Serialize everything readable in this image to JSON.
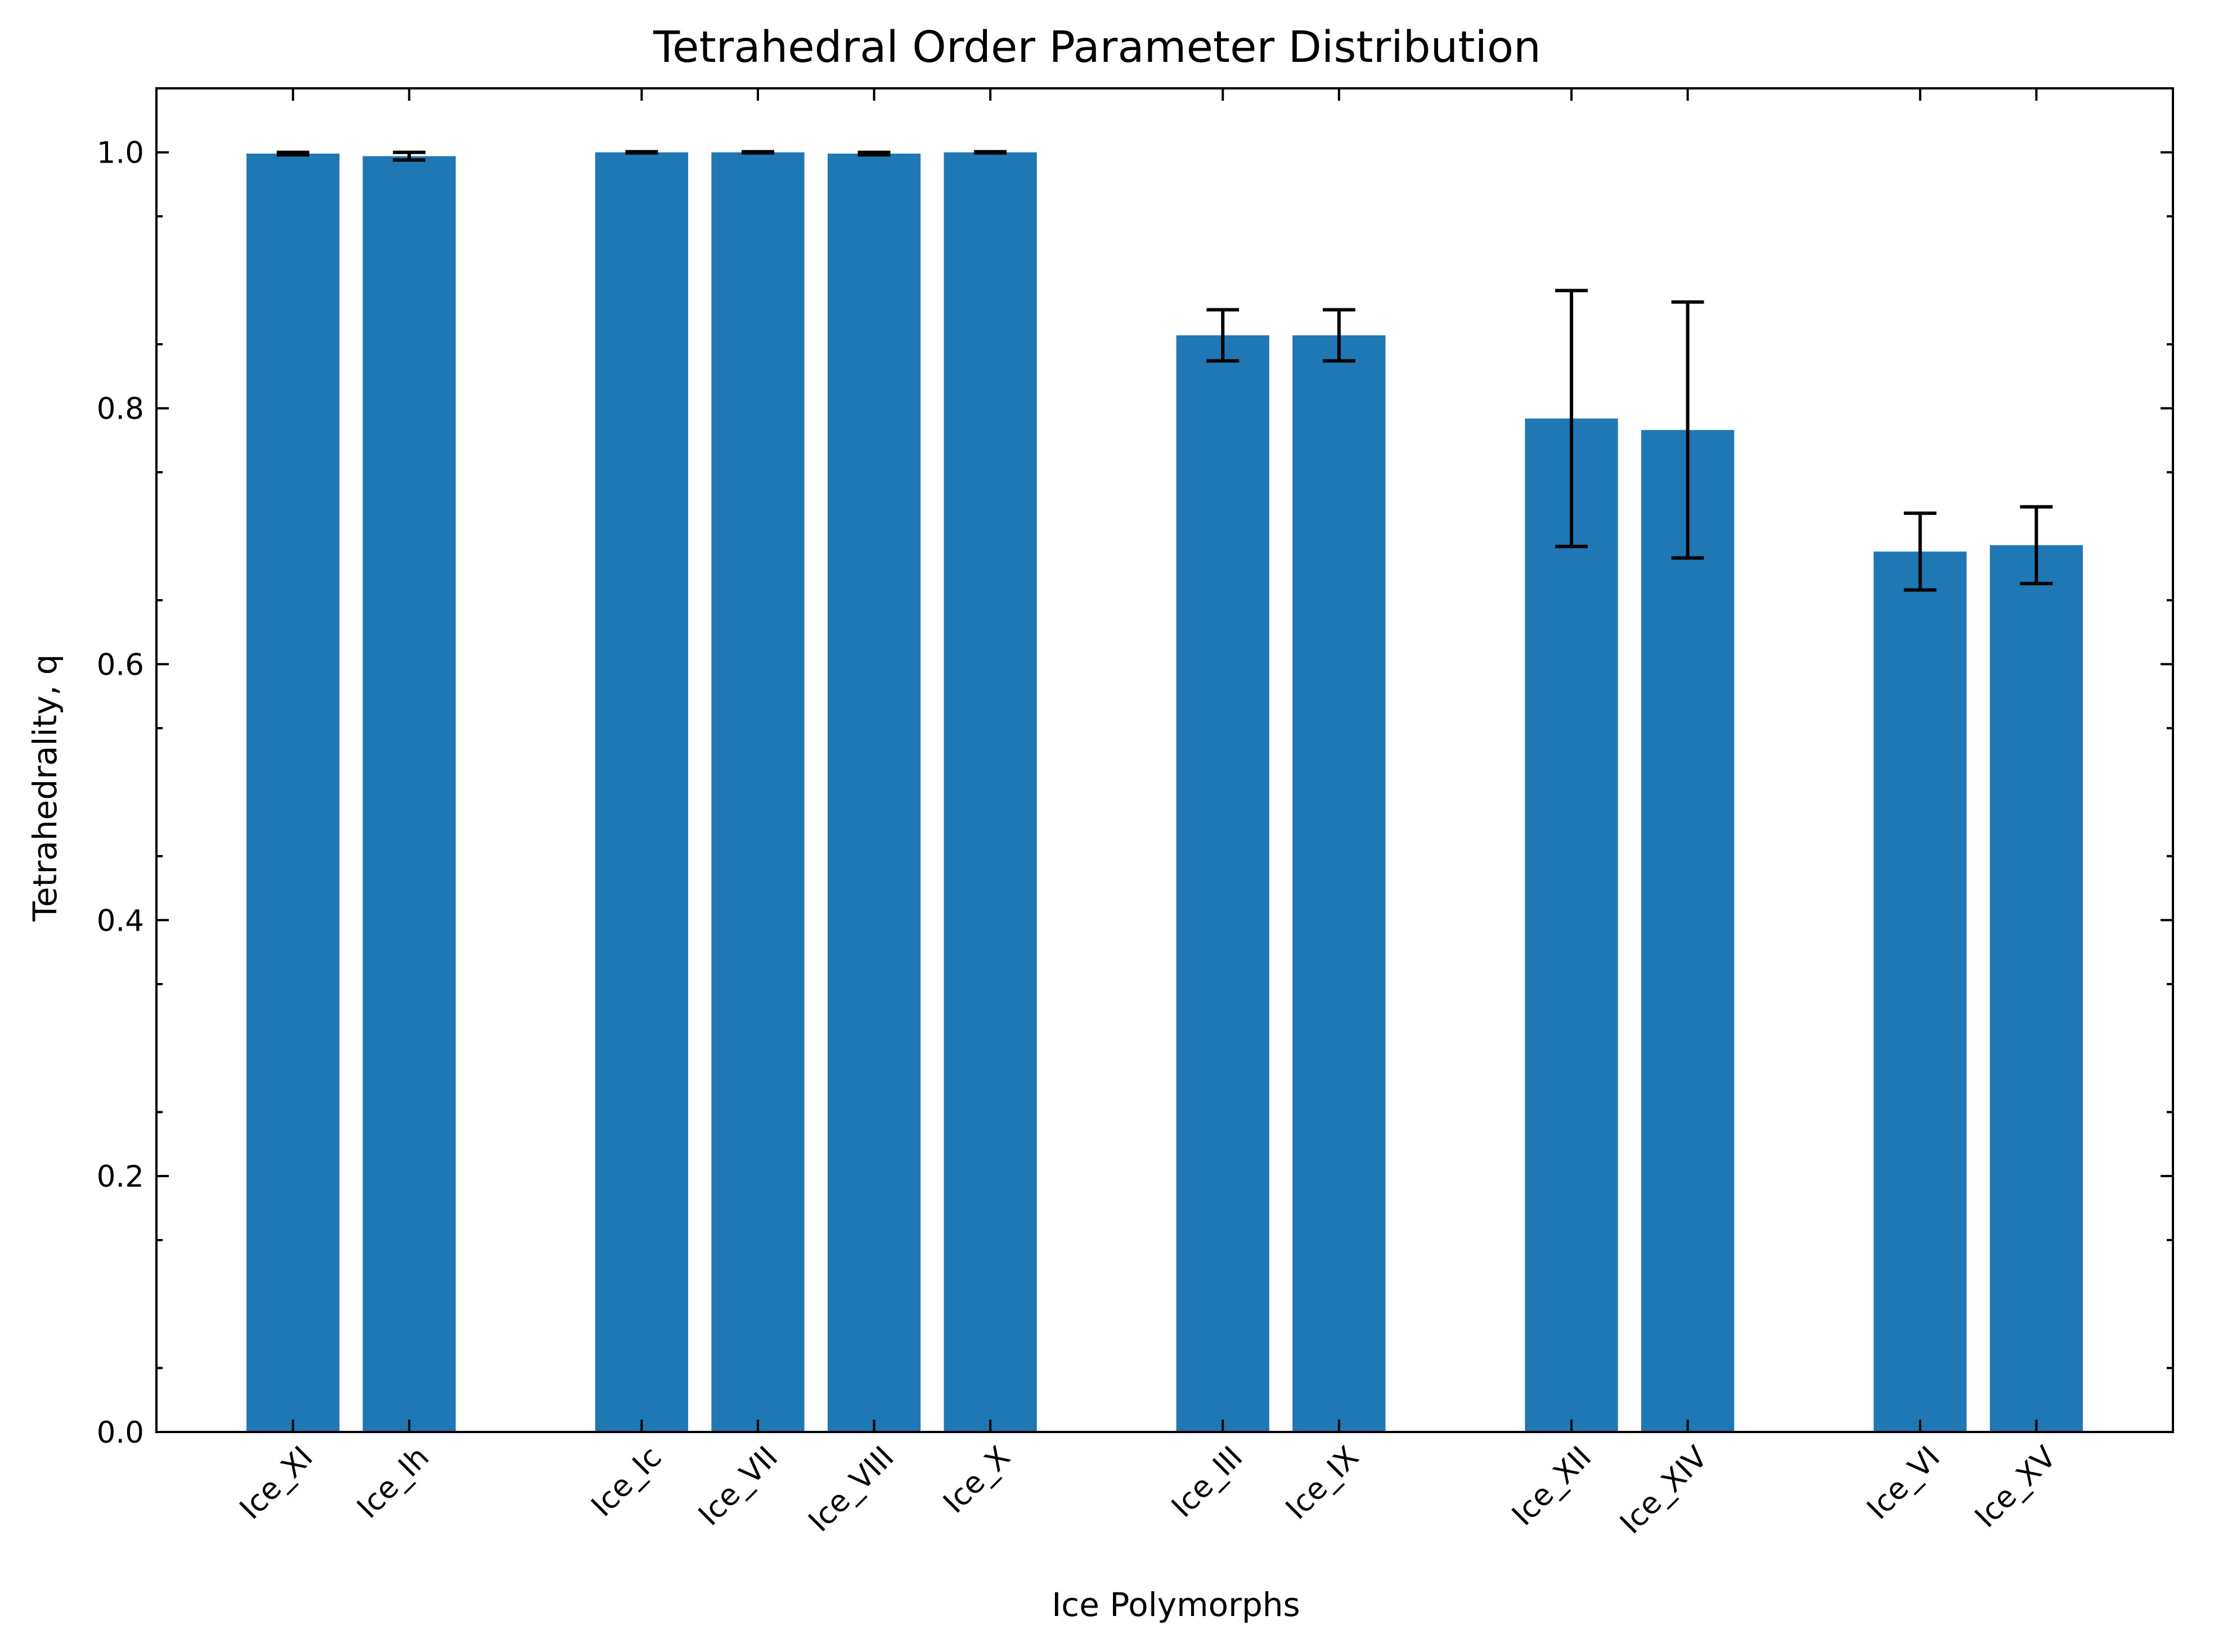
{
  "chart_data": {
    "type": "bar",
    "title": "Tetrahedral Order Parameter Distribution",
    "xlabel": "Ice Polymorphs",
    "ylabel": "Tetrahedrality, q",
    "ylim": [
      0,
      1.05
    ],
    "yticks": [
      0.0,
      0.2,
      0.4,
      0.6,
      0.8,
      1.0
    ],
    "ytick_labels": [
      "0.0",
      "0.2",
      "0.4",
      "0.6",
      "0.8",
      "1.0"
    ],
    "y_minor_step": 0.05,
    "grid": false,
    "legend": "none",
    "tick_direction": "in",
    "bar_color": "#1f77b4",
    "error_color": "#000000",
    "groups": [
      [
        "Ice_XI",
        "Ice_Ih"
      ],
      [
        "Ice_Ic",
        "Ice_VII",
        "Ice_VIII",
        "Ice_X"
      ],
      [
        "Ice_III",
        "Ice_IX"
      ],
      [
        "Ice_XII",
        "Ice_XIV"
      ],
      [
        "Ice_VI",
        "Ice_XV"
      ]
    ],
    "categories": [
      "Ice_XI",
      "Ice_Ih",
      "Ice_Ic",
      "Ice_VII",
      "Ice_VIII",
      "Ice_X",
      "Ice_III",
      "Ice_IX",
      "Ice_XII",
      "Ice_XIV",
      "Ice_VI",
      "Ice_XV"
    ],
    "values": [
      0.999,
      0.997,
      1.0,
      1.0,
      0.999,
      1.0,
      0.857,
      0.857,
      0.792,
      0.783,
      0.688,
      0.693
    ],
    "errors": [
      0.001,
      0.003,
      0.0005,
      0.0005,
      0.001,
      0.0005,
      0.02,
      0.02,
      0.1,
      0.1,
      0.03,
      0.03
    ]
  }
}
